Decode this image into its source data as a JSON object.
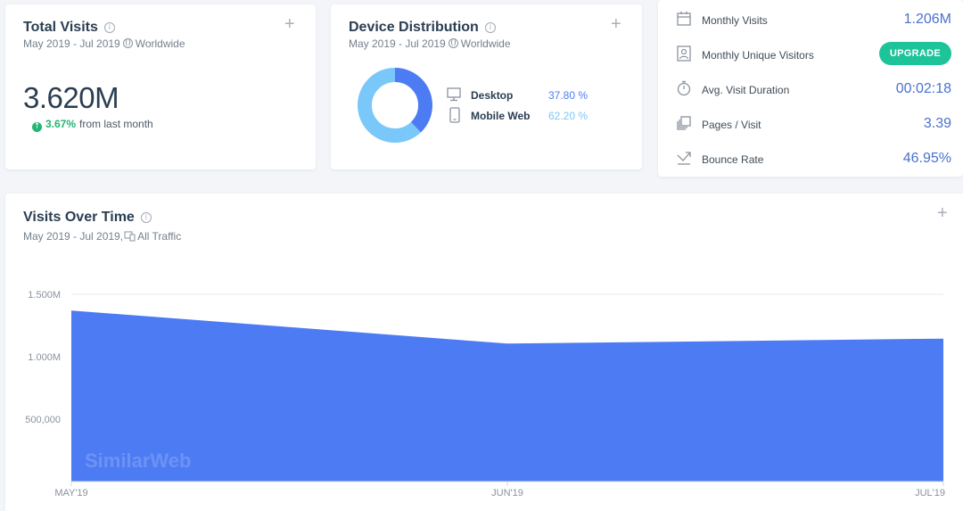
{
  "total_visits": {
    "title": "Total Visits",
    "date_range": "May 2019 - Jul 2019",
    "region": "Worldwide",
    "value": "3.620M",
    "change_pct": "3.67%",
    "change_text": "from last month"
  },
  "device_distribution": {
    "title": "Device Distribution",
    "date_range": "May 2019 - Jul 2019",
    "region": "Worldwide",
    "items": [
      {
        "label": "Desktop",
        "value": "37.80 %",
        "fraction": 0.378,
        "color": "#4d7bf3",
        "icon": "desktop-icon"
      },
      {
        "label": "Mobile Web",
        "value": "62.20 %",
        "fraction": 0.622,
        "color": "#7ac8f9",
        "icon": "mobile-icon"
      }
    ]
  },
  "metrics": [
    {
      "label": "Monthly Visits",
      "value": "1.206M",
      "icon": "calendar-icon"
    },
    {
      "label": "Monthly Unique Visitors",
      "button": "UPGRADE",
      "icon": "person-icon"
    },
    {
      "label": "Avg. Visit Duration",
      "value": "00:02:18",
      "icon": "stopwatch-icon"
    },
    {
      "label": "Pages / Visit",
      "value": "3.39",
      "icon": "pages-icon"
    },
    {
      "label": "Bounce Rate",
      "value": "46.95%",
      "icon": "bounce-icon"
    }
  ],
  "visits_over_time": {
    "title": "Visits Over Time",
    "date_range": "May 2019 - Jul 2019,",
    "traffic": "All Traffic",
    "watermark": "SimilarWeb"
  },
  "chart_data": {
    "type": "area",
    "categories": [
      "MAY'19",
      "JUN'19",
      "JUL'19"
    ],
    "values": [
      1370000,
      1105000,
      1145000
    ],
    "y_ticks": [
      {
        "value": 500000,
        "label": "500,000"
      },
      {
        "value": 1000000,
        "label": "1.000M"
      },
      {
        "value": 1500000,
        "label": "1.500M"
      }
    ],
    "ylim": [
      0,
      1500000
    ],
    "grid": true,
    "color": "#4d7bf3"
  }
}
